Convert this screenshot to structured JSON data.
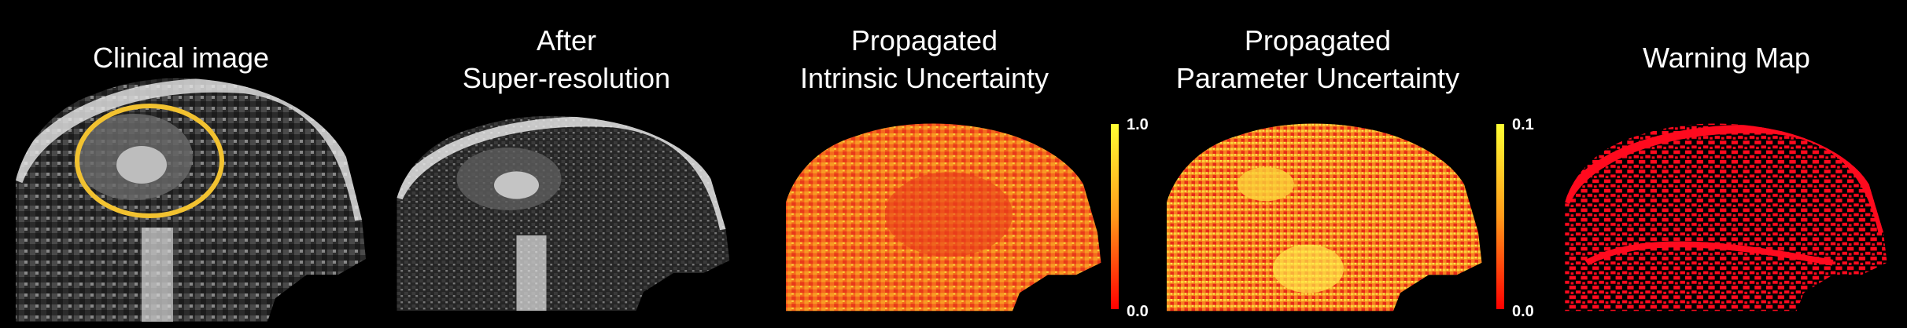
{
  "panels": [
    {
      "title_lines": [
        "Clinical image"
      ]
    },
    {
      "title_lines": [
        "After",
        "Super-resolution"
      ]
    },
    {
      "title_lines": [
        "Propagated",
        "Intrinsic Uncertainty"
      ],
      "colorbar": {
        "max": "1.0",
        "min": "0.0"
      }
    },
    {
      "title_lines": [
        "Propagated",
        "Parameter Uncertainty"
      ],
      "colorbar": {
        "max": "0.1",
        "min": "0.0"
      }
    },
    {
      "title_lines": [
        "Warning Map"
      ]
    }
  ],
  "colors": {
    "background": "#000000",
    "highlight_ellipse": "#f2c230",
    "colorbar_top": "#ffff33",
    "colorbar_bottom": "#ff0000",
    "warning_red": "#ff0a1e"
  }
}
